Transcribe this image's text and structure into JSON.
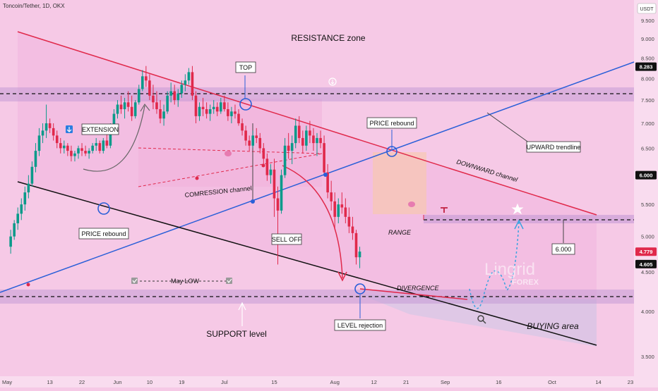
{
  "chart_data": {
    "type": "candlestick",
    "title": "Toncoin/Tether, 1D, OKX",
    "currency": "USDT",
    "y_axis": {
      "scale": "log",
      "range": [
        3.3,
        10.1
      ],
      "ticks": [
        9.5,
        9.0,
        8.5,
        8.0,
        7.5,
        7.0,
        6.5,
        5.5,
        5.0,
        4.5,
        4.0,
        3.5
      ]
    },
    "x_axis": {
      "range": [
        "2024-04-29",
        "2024-10-24"
      ],
      "ticks": [
        {
          "date": "2024-05-01",
          "label": "May"
        },
        {
          "date": "2024-05-13",
          "label": "13"
        },
        {
          "date": "2024-05-22",
          "label": "22"
        },
        {
          "date": "2024-06-01",
          "label": "Jun"
        },
        {
          "date": "2024-06-10",
          "label": "10"
        },
        {
          "date": "2024-06-19",
          "label": "19"
        },
        {
          "date": "2024-07-01",
          "label": "Jul"
        },
        {
          "date": "2024-07-15",
          "label": "15"
        },
        {
          "date": "2024-08-01",
          "label": "Aug"
        },
        {
          "date": "2024-08-12",
          "label": "12"
        },
        {
          "date": "2024-08-21",
          "label": "21"
        },
        {
          "date": "2024-09-01",
          "label": "Sep"
        },
        {
          "date": "2024-09-16",
          "label": "16"
        },
        {
          "date": "2024-10-01",
          "label": "Oct"
        },
        {
          "date": "2024-10-14",
          "label": "14"
        },
        {
          "date": "2024-10-23",
          "label": "23"
        }
      ]
    },
    "price_tags": [
      {
        "label": "8.283",
        "value": 8.283,
        "style": "dark"
      },
      {
        "label": "6.000",
        "value": 6.0,
        "style": "dark"
      },
      {
        "label": "4.779",
        "value": 4.779,
        "style": "red"
      },
      {
        "label": "4.605",
        "value": 4.605,
        "style": "dark"
      }
    ],
    "candles_ohlc": [
      [
        4.85,
        5.1,
        4.75,
        5.0
      ],
      [
        5.0,
        5.25,
        4.95,
        5.2
      ],
      [
        5.2,
        5.45,
        5.1,
        5.35
      ],
      [
        5.35,
        5.6,
        5.25,
        5.5
      ],
      [
        5.5,
        5.8,
        5.4,
        5.7
      ],
      [
        5.7,
        6.0,
        5.6,
        5.85
      ],
      [
        5.85,
        6.25,
        5.8,
        6.15
      ],
      [
        6.15,
        6.6,
        6.05,
        6.45
      ],
      [
        6.45,
        6.9,
        6.35,
        6.75
      ],
      [
        6.75,
        7.0,
        6.6,
        6.85
      ],
      [
        6.85,
        7.4,
        6.7,
        7.0
      ],
      [
        7.0,
        7.1,
        6.8,
        6.9
      ],
      [
        6.9,
        7.0,
        6.65,
        6.75
      ],
      [
        6.75,
        6.85,
        6.5,
        6.6
      ],
      [
        6.6,
        6.7,
        6.4,
        6.5
      ],
      [
        6.5,
        6.65,
        6.4,
        6.55
      ],
      [
        6.55,
        6.6,
        6.35,
        6.45
      ],
      [
        6.45,
        6.55,
        6.25,
        6.35
      ],
      [
        6.35,
        6.45,
        6.25,
        6.4
      ],
      [
        6.4,
        6.55,
        6.3,
        6.5
      ],
      [
        6.5,
        6.6,
        6.35,
        6.45
      ],
      [
        6.45,
        6.55,
        6.35,
        6.4
      ],
      [
        6.4,
        6.5,
        6.3,
        6.45
      ],
      [
        6.45,
        6.6,
        6.4,
        6.55
      ],
      [
        6.55,
        6.7,
        6.45,
        6.6
      ],
      [
        6.6,
        6.65,
        6.4,
        6.45
      ],
      [
        6.45,
        6.7,
        6.4,
        6.65
      ],
      [
        6.65,
        6.8,
        6.5,
        6.55
      ],
      [
        6.55,
        7.0,
        6.5,
        6.9
      ],
      [
        6.9,
        7.3,
        6.85,
        7.2
      ],
      [
        7.2,
        7.5,
        7.1,
        7.4
      ],
      [
        7.4,
        7.6,
        7.2,
        7.3
      ],
      [
        7.3,
        7.55,
        7.1,
        7.45
      ],
      [
        7.45,
        7.7,
        7.25,
        7.35
      ],
      [
        7.35,
        7.6,
        7.05,
        7.15
      ],
      [
        7.15,
        7.5,
        7.1,
        7.45
      ],
      [
        7.45,
        7.85,
        7.4,
        7.75
      ],
      [
        7.75,
        8.2,
        7.7,
        8.05
      ],
      [
        8.05,
        8.3,
        7.8,
        7.95
      ],
      [
        7.95,
        8.1,
        7.5,
        7.6
      ],
      [
        7.6,
        7.85,
        7.3,
        7.45
      ],
      [
        7.45,
        7.7,
        7.2,
        7.3
      ],
      [
        7.3,
        7.5,
        7.0,
        7.1
      ],
      [
        7.1,
        7.4,
        6.95,
        7.25
      ],
      [
        7.25,
        7.7,
        7.2,
        7.6
      ],
      [
        7.6,
        7.9,
        7.45,
        7.7
      ],
      [
        7.7,
        7.85,
        7.4,
        7.5
      ],
      [
        7.5,
        7.75,
        7.35,
        7.65
      ],
      [
        7.65,
        7.95,
        7.55,
        7.85
      ],
      [
        7.85,
        8.1,
        7.7,
        7.95
      ],
      [
        7.95,
        8.25,
        7.85,
        8.15
      ],
      [
        8.15,
        8.3,
        7.5,
        7.6
      ],
      [
        7.6,
        7.7,
        7.0,
        7.15
      ],
      [
        7.15,
        7.45,
        7.05,
        7.35
      ],
      [
        7.35,
        7.55,
        7.15,
        7.3
      ],
      [
        7.3,
        7.45,
        7.1,
        7.2
      ],
      [
        7.2,
        7.4,
        7.05,
        7.3
      ],
      [
        7.3,
        7.5,
        7.2,
        7.35
      ],
      [
        7.35,
        7.45,
        7.15,
        7.25
      ],
      [
        7.25,
        7.55,
        7.2,
        7.45
      ],
      [
        7.45,
        7.6,
        7.25,
        7.3
      ],
      [
        7.3,
        7.45,
        7.05,
        7.15
      ],
      [
        7.15,
        7.35,
        7.0,
        7.25
      ],
      [
        7.25,
        7.4,
        7.1,
        7.2
      ],
      [
        7.2,
        7.3,
        6.95,
        7.0
      ],
      [
        7.0,
        7.1,
        6.75,
        6.85
      ],
      [
        6.85,
        6.95,
        6.55,
        6.65
      ],
      [
        6.65,
        6.75,
        6.45,
        6.55
      ],
      [
        6.55,
        6.85,
        6.5,
        6.75
      ],
      [
        6.75,
        6.9,
        6.6,
        6.7
      ],
      [
        6.7,
        6.8,
        6.4,
        6.5
      ],
      [
        6.5,
        6.6,
        6.2,
        6.3
      ],
      [
        6.3,
        6.4,
        5.9,
        6.0
      ],
      [
        6.0,
        6.2,
        5.85,
        6.1
      ],
      [
        6.1,
        6.3,
        5.3,
        5.6
      ],
      [
        5.6,
        5.8,
        4.6,
        5.4
      ],
      [
        5.4,
        6.1,
        5.35,
        6.0
      ],
      [
        6.0,
        6.7,
        5.95,
        6.55
      ],
      [
        6.55,
        6.8,
        6.3,
        6.45
      ],
      [
        6.45,
        6.75,
        6.2,
        6.6
      ],
      [
        6.6,
        7.1,
        6.5,
        6.95
      ],
      [
        6.95,
        7.15,
        6.6,
        6.7
      ],
      [
        6.7,
        6.85,
        6.4,
        6.55
      ],
      [
        6.55,
        6.95,
        6.45,
        6.85
      ],
      [
        6.85,
        7.05,
        6.6,
        6.75
      ],
      [
        6.75,
        6.9,
        6.45,
        6.6
      ],
      [
        6.6,
        6.8,
        6.35,
        6.7
      ],
      [
        6.7,
        6.85,
        6.5,
        6.6
      ],
      [
        6.6,
        6.75,
        6.0,
        6.05
      ],
      [
        6.05,
        6.2,
        5.6,
        5.7
      ],
      [
        5.7,
        5.9,
        5.4,
        5.55
      ],
      [
        5.55,
        5.7,
        5.1,
        5.3
      ],
      [
        5.3,
        5.6,
        5.2,
        5.5
      ],
      [
        5.5,
        5.7,
        5.35,
        5.45
      ],
      [
        5.45,
        5.6,
        5.2,
        5.3
      ],
      [
        5.3,
        5.45,
        5.05,
        5.15
      ],
      [
        5.15,
        5.3,
        4.95,
        5.05
      ],
      [
        5.05,
        5.1,
        4.6,
        4.7
      ],
      [
        4.7,
        4.85,
        4.55,
        4.78
      ]
    ],
    "annotations": {
      "zones": [
        "RESISTANCE zone",
        "BUYING area",
        "SUPPORT level",
        "RANGE"
      ],
      "labels": [
        "TOP",
        "EXTENSION",
        "PRICE rebound",
        "PRICE rebound",
        "COMRESSION channel",
        "SELL OFF",
        "LEVEL rejection",
        "DIVERGENCE",
        "May LOW",
        "UPWARD trendline",
        "DOWNWARD channel",
        "6.000"
      ],
      "watermark": [
        "Lingrid",
        "FOREX"
      ]
    }
  },
  "colors": {
    "background": "#f6c9e6",
    "bull": "#0a9a8a",
    "bear": "#e0294b",
    "trend_red": "#e0294b",
    "trend_blue": "#2a5fd8",
    "trend_black": "#111111",
    "zone": "#c59ad6",
    "projection": "#3aa3e0"
  }
}
